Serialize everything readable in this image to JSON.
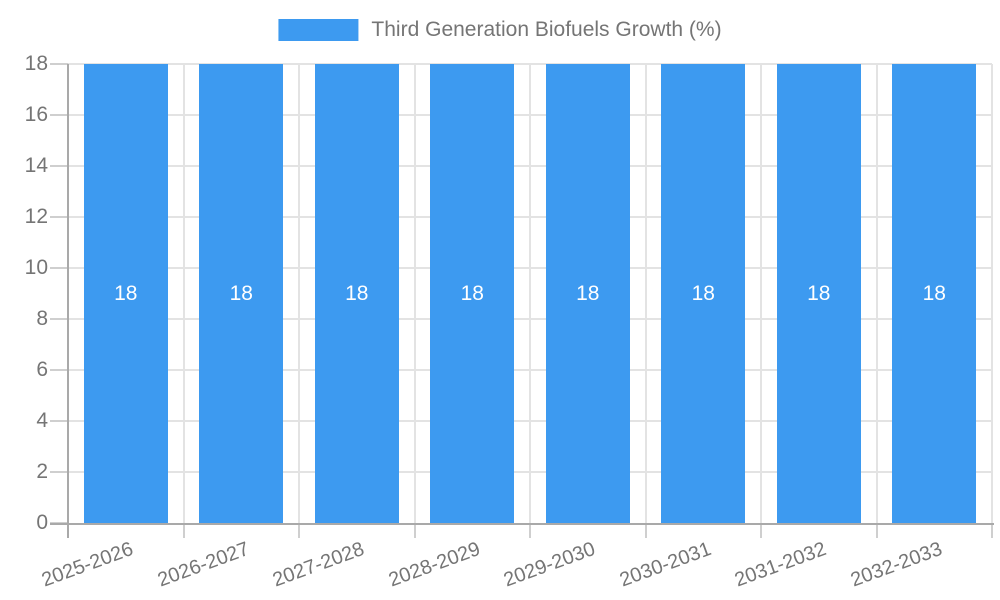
{
  "legend": {
    "label": "Third Generation Biofuels Growth (%)"
  },
  "chart_data": {
    "type": "bar",
    "title": "",
    "series_name": "Third Generation Biofuels Growth (%)",
    "categories": [
      "2025-2026",
      "2026-2027",
      "2027-2028",
      "2028-2029",
      "2029-2030",
      "2030-2031",
      "2031-2032",
      "2032-2033"
    ],
    "values": [
      18,
      18,
      18,
      18,
      18,
      18,
      18,
      18
    ],
    "bar_value_labels": [
      "18",
      "18",
      "18",
      "18",
      "18",
      "18",
      "18",
      "18"
    ],
    "xlabel": "",
    "ylabel": "",
    "ylim": [
      0,
      18
    ],
    "yticks": [
      0,
      2,
      4,
      6,
      8,
      10,
      12,
      14,
      16,
      18
    ],
    "grid": true,
    "legend_position": "top",
    "x_label_rotation_deg": -20,
    "colors": {
      "bar": "#3D9AF0",
      "bar_label": "#FFFFFF",
      "axis": "#A9A9A9",
      "gridline": "#E3E3E3",
      "tick_mark": "#CFCFCF",
      "tick_text": "#757575",
      "background": "#FFFFFF"
    }
  }
}
